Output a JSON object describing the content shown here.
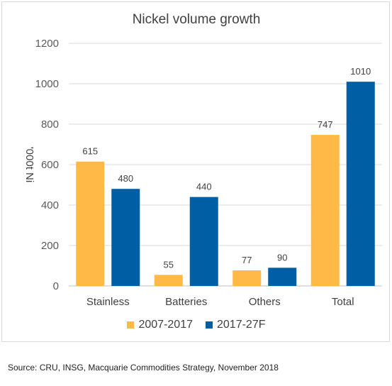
{
  "chart_data": {
    "type": "bar",
    "title": "Nickel volume growth",
    "ylabel": "'000t Ni",
    "xlabel": "",
    "categories": [
      "Stainless",
      "Batteries",
      "Others",
      "Total"
    ],
    "series": [
      {
        "name": "2007-2017",
        "color": "#FFB946",
        "values": [
          615,
          55,
          77,
          747
        ]
      },
      {
        "name": "2017-27F",
        "color": "#005EA5",
        "values": [
          480,
          440,
          90,
          1010
        ]
      }
    ],
    "ylim": [
      0,
      1200
    ],
    "yticks": [
      0,
      200,
      400,
      600,
      800,
      1000,
      1200
    ],
    "grid": true,
    "legend": "bottom"
  },
  "source": "Source: CRU, INSG, Macquarie Commodities Strategy, November 2018"
}
